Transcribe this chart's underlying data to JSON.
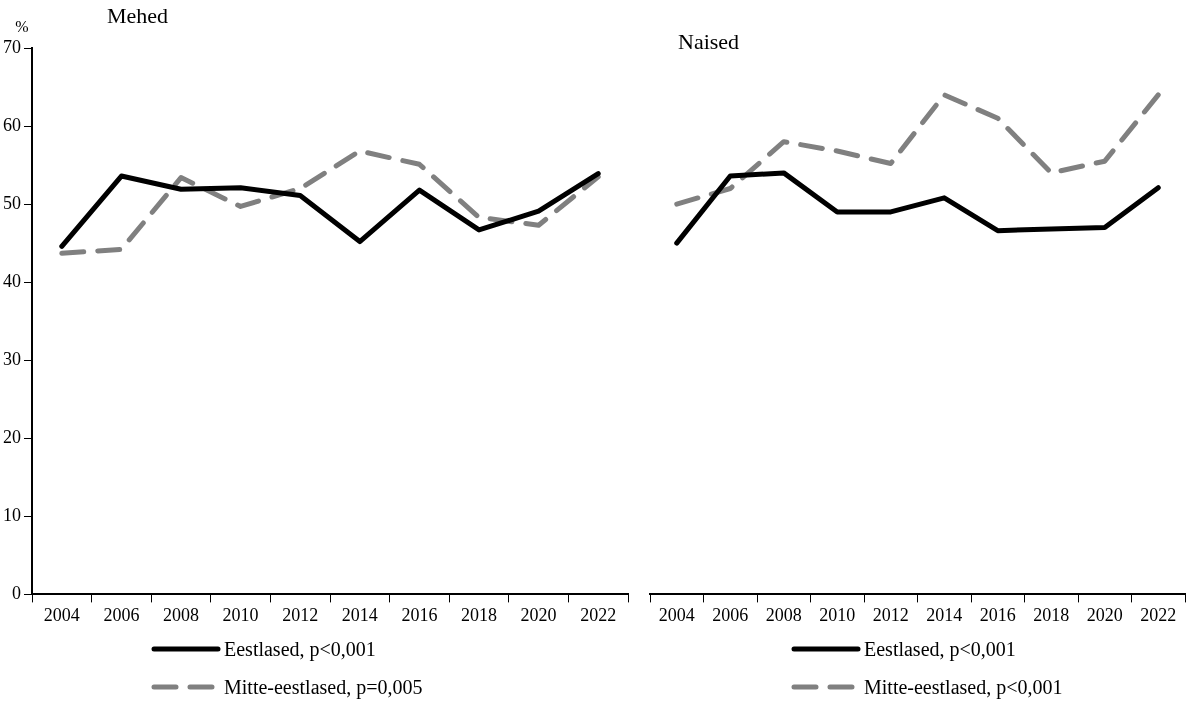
{
  "chart_data": [
    {
      "type": "line",
      "title": "Mehed",
      "ylabel": "%",
      "categories": [
        "2004",
        "2006",
        "2008",
        "2010",
        "2012",
        "2014",
        "2016",
        "2018",
        "2020",
        "2022"
      ],
      "series": [
        {
          "name": "Eestlased, p<0,001",
          "color": "#000000",
          "line_style": "solid",
          "values": [
            44.6,
            53.6,
            51.9,
            52.1,
            51.1,
            45.2,
            51.8,
            46.7,
            49.1,
            53.9
          ]
        },
        {
          "name": "Mitte-eestlased, p=0,005",
          "color": "#808080",
          "line_style": "dashed",
          "values": [
            43.7,
            44.2,
            53.4,
            49.7,
            52.0,
            56.8,
            55.1,
            48.3,
            47.3,
            53.5
          ]
        }
      ],
      "ylim": [
        0,
        70
      ],
      "yticks": [
        0,
        10,
        20,
        30,
        40,
        50,
        60,
        70
      ],
      "grid": false,
      "legend": "bottom",
      "marker": "none"
    },
    {
      "type": "line",
      "title": "Naised",
      "categories": [
        "2004",
        "2006",
        "2008",
        "2010",
        "2012",
        "2014",
        "2016",
        "2018",
        "2020",
        "2022"
      ],
      "series": [
        {
          "name": "Eestlased, p<0,001",
          "color": "#000000",
          "line_style": "solid",
          "values": [
            45.0,
            53.6,
            54.0,
            49.0,
            49.0,
            50.8,
            46.6,
            46.8,
            47.0,
            52.1
          ]
        },
        {
          "name": "Mitte-eestlased, p<0,001",
          "color": "#808080",
          "line_style": "dashed",
          "values": [
            50.0,
            52.0,
            58.0,
            56.8,
            55.2,
            64.0,
            61.0,
            54.0,
            55.5,
            64.0
          ]
        }
      ],
      "ylim": [
        0,
        70
      ],
      "yticks": [
        0,
        10,
        20,
        30,
        40,
        50,
        60,
        70
      ],
      "grid": false,
      "legend": "bottom",
      "marker": "none",
      "tick_labels": "x"
    }
  ]
}
